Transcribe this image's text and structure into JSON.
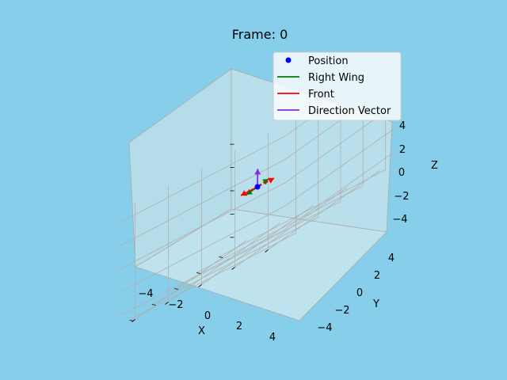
{
  "chart_data": {
    "type": "line",
    "projection": "3d",
    "title": "Frame: 0",
    "xlabel": "X",
    "ylabel": "Y",
    "zlabel": "Z",
    "xlim": [
      -5,
      5
    ],
    "ylim": [
      -5,
      5
    ],
    "zlim": [
      -5,
      5
    ],
    "xticks": [
      "−4",
      "−2",
      "0",
      "2",
      "4"
    ],
    "yticks": [
      "−4",
      "−2",
      "0",
      "2",
      "4"
    ],
    "zticks": [
      "−4",
      "−2",
      "0",
      "2",
      "4"
    ],
    "grid": true,
    "legend_position": "upper-right",
    "series": [
      {
        "name": "Position",
        "kind": "point",
        "color": "#0000ff",
        "point": [
          0,
          0,
          0
        ]
      },
      {
        "name": "Right Wing",
        "kind": "vector",
        "color": "#008000",
        "start": [
          0,
          0,
          0
        ],
        "end": [
          0,
          -1,
          0
        ]
      },
      {
        "name": "Front",
        "kind": "vector",
        "color": "#ff0000",
        "start": [
          0,
          0,
          0
        ],
        "end": [
          1,
          0,
          0
        ]
      },
      {
        "name": "Direction Vector",
        "kind": "vector",
        "color": "#8a2be2",
        "start": [
          0,
          0,
          0
        ],
        "end": [
          2,
          3,
          1
        ]
      }
    ]
  },
  "colors": {
    "background": "#87ceeb",
    "pane": "#b5dce9",
    "grid": "#b0b0b0"
  }
}
